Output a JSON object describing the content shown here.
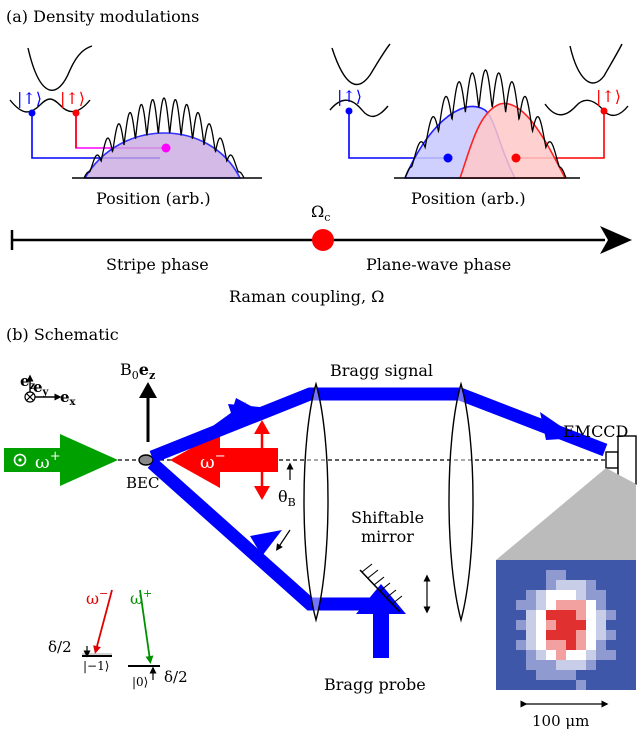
{
  "panel_a": {
    "title": "(a) Density modulations",
    "left": {
      "spin_up_blue": "|↑⟩",
      "spin_up_red": "|↑⟩",
      "position_label": "Position (arb.)"
    },
    "right": {
      "spin_up_blue": "|↑⟩",
      "spin_up_red": "|↑⟩",
      "position_label": "Position (arb.)"
    },
    "axis": {
      "critical_label": "Ω",
      "critical_sub": "c",
      "left_phase": "Stripe phase",
      "right_phase": "Plane-wave phase",
      "axis_label": "Raman coupling, Ω"
    }
  },
  "panel_b": {
    "title": "(b) Schematic",
    "axes": {
      "ez": "e",
      "ez_sub": "z",
      "ey": "e",
      "ey_sub": "y",
      "ex": "e",
      "ex_sub": "x"
    },
    "field": {
      "label": "B",
      "label_sub": "0",
      "label_vec": "e",
      "label_vec_sub": "z"
    },
    "beams": {
      "omega_plus": "ω",
      "omega_plus_sup": "+",
      "omega_minus": "ω",
      "omega_minus_sup": "−"
    },
    "bec_label": "BEC",
    "theta": "θ",
    "theta_sub": "B",
    "bragg_signal": "Bragg signal",
    "bragg_probe": "Bragg probe",
    "mirror": [
      "Shiftable",
      "mirror"
    ],
    "camera": "EMCCD",
    "scale_bar": "100 μm",
    "levels": {
      "minus_label": "ω",
      "minus_sup": "−",
      "plus_label": "ω",
      "plus_sup": "+",
      "delta_left": "δ/2",
      "delta_right": "δ/2",
      "state_minus1": "|−1⟩",
      "state_0": "|0⟩"
    }
  },
  "colors": {
    "blue": "#0000ff",
    "red": "#ff0000",
    "green": "#00a000",
    "magenta": "#ff00ff",
    "camera_bg": "#3f57a8"
  }
}
